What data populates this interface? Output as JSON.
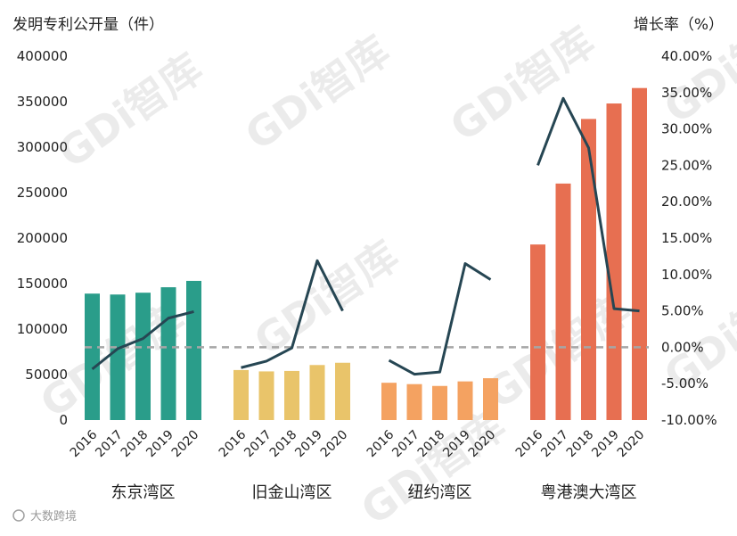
{
  "chart_data": {
    "type": "bar",
    "left_axis_title": "发明专利公开量（件）",
    "right_axis_title": "增长率（%）",
    "left_ticks": [
      "400000",
      "350000",
      "300000",
      "250000",
      "200000",
      "150000",
      "100000",
      "50000",
      "0"
    ],
    "right_ticks": [
      "40.00%",
      "35.00%",
      "30.00%",
      "25.00%",
      "20.00%",
      "15.00%",
      "10.00%",
      "5.00%",
      "0.00%",
      "-5.00%",
      "-10.00%"
    ],
    "ylim_left": [
      0,
      400000
    ],
    "ylim_right": [
      -10,
      40
    ],
    "categories": [
      "2016",
      "2017",
      "2018",
      "2019",
      "2020"
    ],
    "groups": [
      {
        "name": "东京湾区",
        "color": "#2a9d8a",
        "values": [
          139000,
          138000,
          140000,
          146000,
          153000
        ],
        "growth": [
          -3.0,
          -0.2,
          1.2,
          4.0,
          4.9
        ]
      },
      {
        "name": "旧金山湾区",
        "color": "#e9c46a",
        "values": [
          55000,
          53500,
          54000,
          60500,
          63000
        ],
        "growth": [
          -2.8,
          -1.9,
          -0.1,
          11.9,
          5.0
        ]
      },
      {
        "name": "纽约湾区",
        "color": "#f4a261",
        "values": [
          41000,
          39500,
          37500,
          42500,
          46000
        ],
        "growth": [
          -1.8,
          -3.7,
          -3.4,
          11.5,
          9.3
        ]
      },
      {
        "name": "粤港澳大湾区",
        "color": "#e76f51",
        "values": [
          193000,
          260000,
          331000,
          348000,
          365000
        ],
        "growth": [
          25.0,
          34.2,
          27.4,
          5.3,
          5.0
        ]
      }
    ],
    "line_color": "#264653",
    "zero_line_color": "#a6a6a6",
    "watermark": "GDi智库",
    "logo": "大数跨境",
    "grid": false
  }
}
